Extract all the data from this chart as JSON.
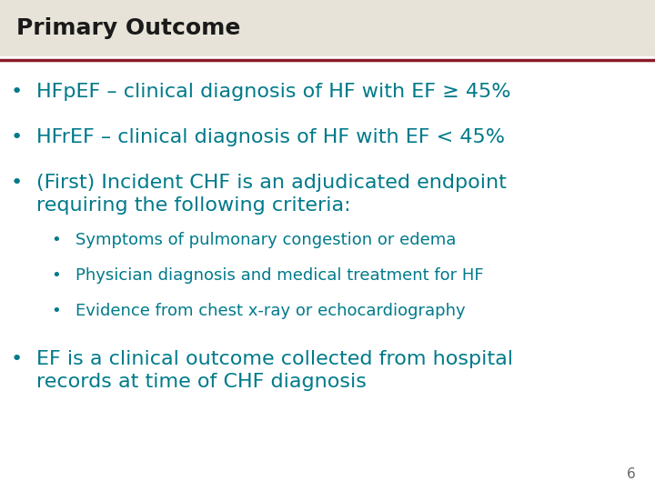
{
  "title": "Primary Outcome",
  "title_bg_color": "#e8e3d8",
  "title_text_color": "#1a1a1a",
  "title_font_size": 18,
  "separator_color": "#8b1a2a",
  "bg_color": "#ffffff",
  "bullet_color": "#007a8a",
  "page_number": "6",
  "bullets": [
    {
      "text": "HFpEF – clinical diagnosis of HF with EF ≥ 45%",
      "indent": 0,
      "size": 16
    },
    {
      "text": "HFrEF – clinical diagnosis of HF with EF < 45%",
      "indent": 0,
      "size": 16
    },
    {
      "text": "(First) Incident CHF is an adjudicated endpoint\nrequiring the following criteria:",
      "indent": 0,
      "size": 16
    },
    {
      "text": "Symptoms of pulmonary congestion or edema",
      "indent": 1,
      "size": 13
    },
    {
      "text": "Physician diagnosis and medical treatment for HF",
      "indent": 1,
      "size": 13
    },
    {
      "text": "Evidence from chest x-ray or echocardiography",
      "indent": 1,
      "size": 13
    },
    {
      "text": "EF is a clinical outcome collected from hospital\nrecords at time of CHF diagnosis",
      "indent": 0,
      "size": 16
    }
  ]
}
